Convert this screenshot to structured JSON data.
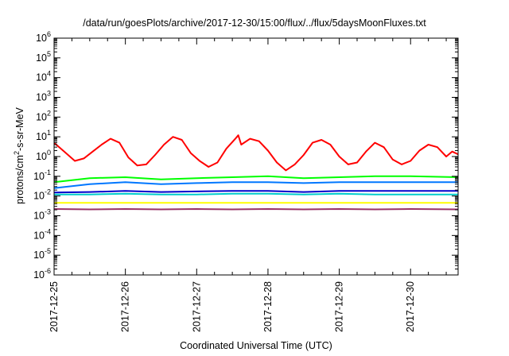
{
  "chart_data": {
    "type": "line",
    "title": "/data/run/goesPlots/archive/2017-12-30/15:00/flux/../flux/5daysMoonFluxes.txt",
    "xlabel": "Coordinated Universal Time (UTC)",
    "ylabel": {
      "prefix": "protons/cm",
      "sup": "2",
      "suffix": "-s-sr-MeV"
    },
    "yscale": "log",
    "ylim": [
      1e-06,
      1000000.0
    ],
    "yticks": [
      {
        "base": "10",
        "exp": "-6",
        "value": 1e-06
      },
      {
        "base": "10",
        "exp": "-5",
        "value": 1e-05
      },
      {
        "base": "10",
        "exp": "-4",
        "value": 0.0001
      },
      {
        "base": "10",
        "exp": "-3",
        "value": 0.001
      },
      {
        "base": "10",
        "exp": "-2",
        "value": 0.01
      },
      {
        "base": "10",
        "exp": "-1",
        "value": 0.1
      },
      {
        "base": "10",
        "exp": "0",
        "value": 1
      },
      {
        "base": "10",
        "exp": "1",
        "value": 10
      },
      {
        "base": "10",
        "exp": "2",
        "value": 100
      },
      {
        "base": "10",
        "exp": "3",
        "value": 1000
      },
      {
        "base": "10",
        "exp": "4",
        "value": 10000
      },
      {
        "base": "10",
        "exp": "5",
        "value": 100000
      },
      {
        "base": "10",
        "exp": "6",
        "value": 1000000
      }
    ],
    "xlim": [
      "2017-12-25",
      "2017-12-30 16:00"
    ],
    "xticks": [
      "2017-12-25",
      "2017-12-26",
      "2017-12-27",
      "2017-12-28",
      "2017-12-29",
      "2017-12-30"
    ],
    "grid": false,
    "series": [
      {
        "color": "#ff0000",
        "x": [
          "2017-12-25 00:00",
          "2017-12-25 04:00",
          "2017-12-25 07:00",
          "2017-12-25 10:00",
          "2017-12-25 13:00",
          "2017-12-25 16:00",
          "2017-12-25 19:00",
          "2017-12-25 22:00",
          "2017-12-26 01:00",
          "2017-12-26 04:00",
          "2017-12-26 07:00",
          "2017-12-26 10:00",
          "2017-12-26 13:00",
          "2017-12-26 16:00",
          "2017-12-26 19:00",
          "2017-12-26 22:00",
          "2017-12-27 01:00",
          "2017-12-27 04:00",
          "2017-12-27 07:00",
          "2017-12-27 10:00",
          "2017-12-27 13:00",
          "2017-12-27 14:00",
          "2017-12-27 15:00",
          "2017-12-27 18:00",
          "2017-12-27 21:00",
          "2017-12-28 00:00",
          "2017-12-28 03:00",
          "2017-12-28 06:00",
          "2017-12-28 09:00",
          "2017-12-28 12:00",
          "2017-12-28 15:00",
          "2017-12-28 18:00",
          "2017-12-28 21:00",
          "2017-12-29 00:00",
          "2017-12-29 03:00",
          "2017-12-29 06:00",
          "2017-12-29 09:00",
          "2017-12-29 12:00",
          "2017-12-29 15:00",
          "2017-12-29 18:00",
          "2017-12-29 21:00",
          "2017-12-30 00:00",
          "2017-12-30 03:00",
          "2017-12-30 06:00",
          "2017-12-30 09:00",
          "2017-12-30 12:00",
          "2017-12-30 14:00",
          "2017-12-30 16:00"
        ],
        "y": [
          5,
          1.5,
          0.6,
          0.8,
          1.8,
          4,
          8,
          5,
          0.9,
          0.35,
          0.4,
          1.2,
          4,
          10,
          7,
          1.5,
          0.6,
          0.3,
          0.5,
          2.5,
          8,
          12,
          4,
          8,
          6,
          2,
          0.5,
          0.2,
          0.4,
          1.2,
          5,
          7,
          4,
          1,
          0.4,
          0.5,
          1.8,
          5,
          3,
          0.7,
          0.4,
          0.6,
          2,
          4,
          3,
          1,
          1.8,
          1.3
        ]
      },
      {
        "color": "#00ff00",
        "x": [
          "2017-12-25 00:00",
          "2017-12-25 12:00",
          "2017-12-26 00:00",
          "2017-12-26 12:00",
          "2017-12-27 00:00",
          "2017-12-27 12:00",
          "2017-12-28 00:00",
          "2017-12-28 12:00",
          "2017-12-29 00:00",
          "2017-12-29 12:00",
          "2017-12-30 00:00",
          "2017-12-30 16:00"
        ],
        "y": [
          0.05,
          0.08,
          0.09,
          0.07,
          0.08,
          0.09,
          0.1,
          0.08,
          0.09,
          0.1,
          0.1,
          0.09
        ]
      },
      {
        "color": "#0077ff",
        "x": [
          "2017-12-25 00:00",
          "2017-12-25 12:00",
          "2017-12-26 00:00",
          "2017-12-26 12:00",
          "2017-12-27 00:00",
          "2017-12-27 12:00",
          "2017-12-28 00:00",
          "2017-12-28 12:00",
          "2017-12-29 00:00",
          "2017-12-29 12:00",
          "2017-12-30 00:00",
          "2017-12-30 16:00"
        ],
        "y": [
          0.025,
          0.04,
          0.05,
          0.04,
          0.045,
          0.05,
          0.05,
          0.045,
          0.05,
          0.05,
          0.05,
          0.05
        ]
      },
      {
        "color": "#00cccc",
        "x": [
          "2017-12-25 00:00",
          "2017-12-25 12:00",
          "2017-12-26 00:00",
          "2017-12-26 12:00",
          "2017-12-27 00:00",
          "2017-12-27 12:00",
          "2017-12-28 00:00",
          "2017-12-28 12:00",
          "2017-12-29 00:00",
          "2017-12-29 12:00",
          "2017-12-30 00:00",
          "2017-12-30 16:00"
        ],
        "y": [
          0.012,
          0.012,
          0.013,
          0.012,
          0.012,
          0.013,
          0.013,
          0.012,
          0.013,
          0.012,
          0.012,
          0.012
        ]
      },
      {
        "color": "#0000cc",
        "x": [
          "2017-12-25 00:00",
          "2017-12-25 12:00",
          "2017-12-26 00:00",
          "2017-12-26 12:00",
          "2017-12-27 00:00",
          "2017-12-27 12:00",
          "2017-12-28 00:00",
          "2017-12-28 12:00",
          "2017-12-29 00:00",
          "2017-12-29 12:00",
          "2017-12-30 00:00",
          "2017-12-30 16:00"
        ],
        "y": [
          0.015,
          0.016,
          0.018,
          0.016,
          0.017,
          0.018,
          0.018,
          0.016,
          0.018,
          0.018,
          0.018,
          0.018
        ]
      },
      {
        "color": "#ffff00",
        "x": [
          "2017-12-25 00:00",
          "2017-12-25 12:00",
          "2017-12-26 00:00",
          "2017-12-26 12:00",
          "2017-12-27 00:00",
          "2017-12-27 12:00",
          "2017-12-28 00:00",
          "2017-12-28 12:00",
          "2017-12-29 00:00",
          "2017-12-29 12:00",
          "2017-12-30 00:00",
          "2017-12-30 16:00"
        ],
        "y": [
          0.0045,
          0.0045,
          0.0045,
          0.0045,
          0.0045,
          0.0045,
          0.0045,
          0.0045,
          0.0045,
          0.0045,
          0.0045,
          0.0045
        ]
      },
      {
        "color": "#993366",
        "x": [
          "2017-12-25 00:00",
          "2017-12-25 12:00",
          "2017-12-26 00:00",
          "2017-12-26 12:00",
          "2017-12-27 00:00",
          "2017-12-27 12:00",
          "2017-12-28 00:00",
          "2017-12-28 12:00",
          "2017-12-29 00:00",
          "2017-12-29 12:00",
          "2017-12-30 00:00",
          "2017-12-30 16:00"
        ],
        "y": [
          0.0022,
          0.0021,
          0.0022,
          0.0021,
          0.0022,
          0.0021,
          0.0022,
          0.0021,
          0.0022,
          0.0021,
          0.0022,
          0.0021
        ]
      }
    ]
  }
}
